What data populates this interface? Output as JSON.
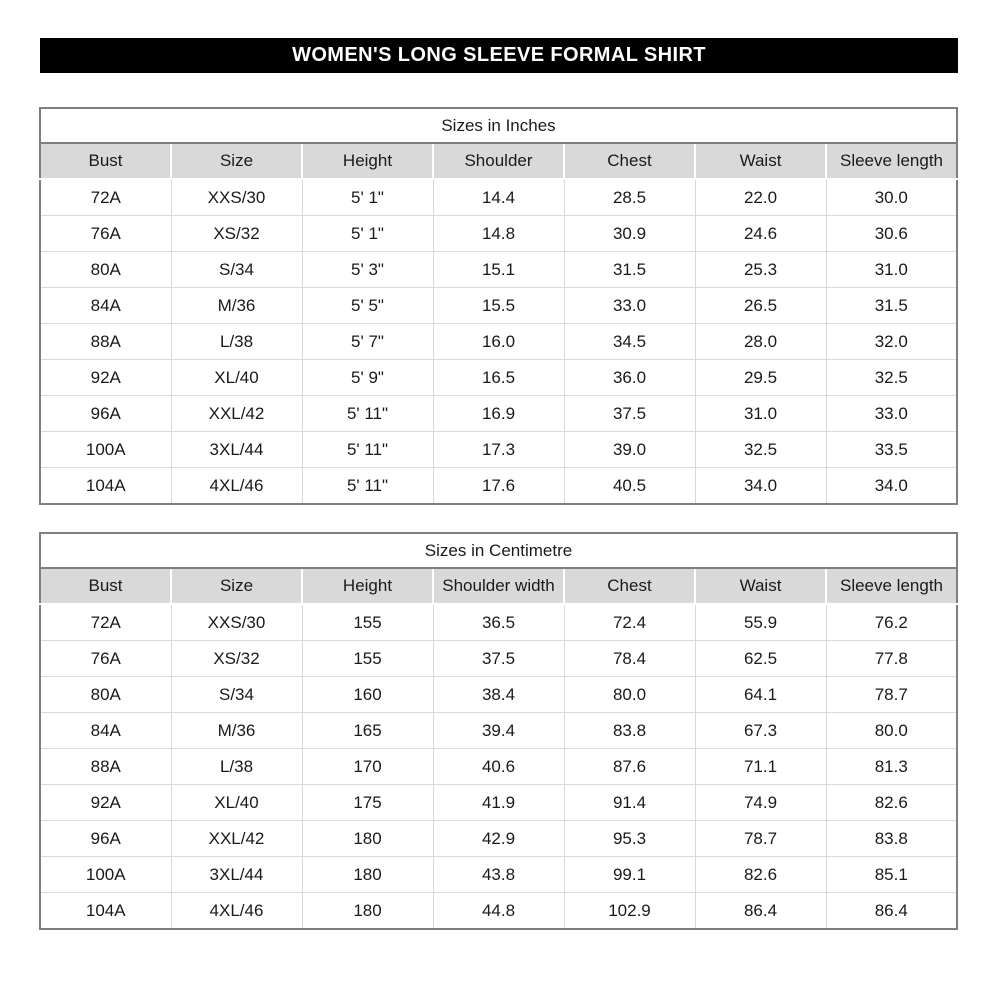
{
  "title": "WOMEN'S LONG SLEEVE FORMAL SHIRT",
  "colors": {
    "title_bar_bg": "#000000",
    "title_bar_text": "#ffffff",
    "header_row_bg": "#d9d9d9",
    "table_border": "#7f7f7f",
    "grid_line": "#d9d9d9",
    "text": "#1a1a1a"
  },
  "tables": [
    {
      "caption": "Sizes in Inches",
      "columns": [
        "Bust",
        "Size",
        "Height",
        "Shoulder",
        "Chest",
        "Waist",
        "Sleeve length"
      ],
      "rows": [
        [
          "72A",
          "XXS/30",
          "5' 1\"",
          "14.4",
          "28.5",
          "22.0",
          "30.0"
        ],
        [
          "76A",
          "XS/32",
          "5' 1\"",
          "14.8",
          "30.9",
          "24.6",
          "30.6"
        ],
        [
          "80A",
          "S/34",
          "5' 3\"",
          "15.1",
          "31.5",
          "25.3",
          "31.0"
        ],
        [
          "84A",
          "M/36",
          "5' 5\"",
          "15.5",
          "33.0",
          "26.5",
          "31.5"
        ],
        [
          "88A",
          "L/38",
          "5' 7\"",
          "16.0",
          "34.5",
          "28.0",
          "32.0"
        ],
        [
          "92A",
          "XL/40",
          "5' 9\"",
          "16.5",
          "36.0",
          "29.5",
          "32.5"
        ],
        [
          "96A",
          "XXL/42",
          "5' 11\"",
          "16.9",
          "37.5",
          "31.0",
          "33.0"
        ],
        [
          "100A",
          "3XL/44",
          "5' 11\"",
          "17.3",
          "39.0",
          "32.5",
          "33.5"
        ],
        [
          "104A",
          "4XL/46",
          "5' 11\"",
          "17.6",
          "40.5",
          "34.0",
          "34.0"
        ]
      ]
    },
    {
      "caption": "Sizes in Centimetre",
      "columns": [
        "Bust",
        "Size",
        "Height",
        "Shoulder width",
        "Chest",
        "Waist",
        "Sleeve length"
      ],
      "rows": [
        [
          "72A",
          "XXS/30",
          "155",
          "36.5",
          "72.4",
          "55.9",
          "76.2"
        ],
        [
          "76A",
          "XS/32",
          "155",
          "37.5",
          "78.4",
          "62.5",
          "77.8"
        ],
        [
          "80A",
          "S/34",
          "160",
          "38.4",
          "80.0",
          "64.1",
          "78.7"
        ],
        [
          "84A",
          "M/36",
          "165",
          "39.4",
          "83.8",
          "67.3",
          "80.0"
        ],
        [
          "88A",
          "L/38",
          "170",
          "40.6",
          "87.6",
          "71.1",
          "81.3"
        ],
        [
          "92A",
          "XL/40",
          "175",
          "41.9",
          "91.4",
          "74.9",
          "82.6"
        ],
        [
          "96A",
          "XXL/42",
          "180",
          "42.9",
          "95.3",
          "78.7",
          "83.8"
        ],
        [
          "100A",
          "3XL/44",
          "180",
          "43.8",
          "99.1",
          "82.6",
          "85.1"
        ],
        [
          "104A",
          "4XL/46",
          "180",
          "44.8",
          "102.9",
          "86.4",
          "86.4"
        ]
      ]
    }
  ]
}
